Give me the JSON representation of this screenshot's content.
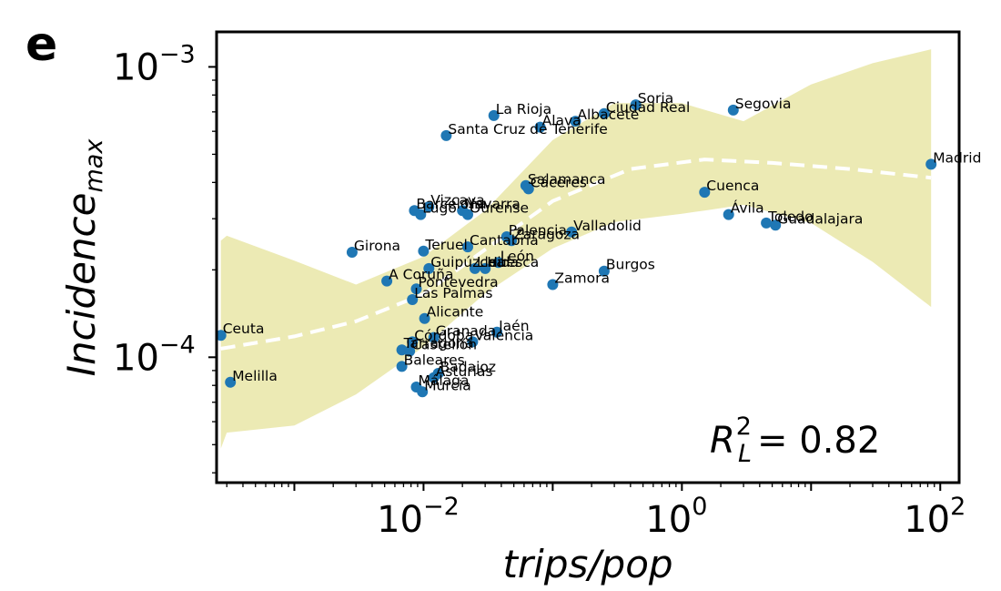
{
  "panel_label": "e",
  "annotation": {
    "text": "R",
    "superscript": "2",
    "subscript": "L",
    "value_text": "= 0.82"
  },
  "colors": {
    "points": "#1f77b4",
    "band": "#e0dc82",
    "band_alpha": 0.6,
    "fit_line": "#ffffff",
    "frame": "#000000"
  },
  "chart_data": {
    "type": "scatter",
    "xlabel": "trips/pop",
    "ylabel": {
      "main": "Incidence",
      "subscript": "max"
    },
    "xscale": "log",
    "yscale": "log",
    "xlim": [
      0.00025,
      140
    ],
    "ylim": [
      3.7e-05,
      0.00132
    ],
    "xticks": [
      {
        "value": 0.01,
        "base": "10",
        "exp": "−2"
      },
      {
        "value": 1,
        "base": "10",
        "exp": "0"
      },
      {
        "value": 100,
        "base": "10",
        "exp": "2"
      }
    ],
    "yticks": [
      {
        "value": 0.0001,
        "base": "10",
        "exp": "−4"
      },
      {
        "value": 0.001,
        "base": "10",
        "exp": "−3"
      }
    ],
    "grid": false,
    "legend": "none",
    "points": [
      {
        "name": "Madrid",
        "x": 85,
        "y": 0.000462
      },
      {
        "name": "Segovia",
        "x": 2.5,
        "y": 0.00071
      },
      {
        "name": "Soria",
        "x": 0.44,
        "y": 0.00074
      },
      {
        "name": "Ciudad Real",
        "x": 0.25,
        "y": 0.00069
      },
      {
        "name": "Albacete",
        "x": 0.15,
        "y": 0.00065
      },
      {
        "name": "Álava",
        "x": 0.08,
        "y": 0.00062
      },
      {
        "name": "La Rioja",
        "x": 0.035,
        "y": 0.00068
      },
      {
        "name": "Santa Cruz de Tenerife",
        "x": 0.015,
        "y": 0.00058
      },
      {
        "name": "Salamanca",
        "x": 0.062,
        "y": 0.00039
      },
      {
        "name": "Cáceres",
        "x": 0.065,
        "y": 0.00038
      },
      {
        "name": "Cuenca",
        "x": 1.5,
        "y": 0.00037
      },
      {
        "name": "Ávila",
        "x": 2.3,
        "y": 0.00031
      },
      {
        "name": "Toledo",
        "x": 4.5,
        "y": 0.00029
      },
      {
        "name": "Guadalajara",
        "x": 5.3,
        "y": 0.000285
      },
      {
        "name": "Valladolid",
        "x": 0.14,
        "y": 0.00027
      },
      {
        "name": "Vizcaya",
        "x": 0.011,
        "y": 0.00033
      },
      {
        "name": "Barcelona",
        "x": 0.0085,
        "y": 0.00032
      },
      {
        "name": "Lugo",
        "x": 0.0095,
        "y": 0.00031
      },
      {
        "name": "Navarra",
        "x": 0.02,
        "y": 0.00032
      },
      {
        "name": "Ourense",
        "x": 0.022,
        "y": 0.00031
      },
      {
        "name": "Girona",
        "x": 0.0028,
        "y": 0.00023
      },
      {
        "name": "Teruel",
        "x": 0.01,
        "y": 0.000232
      },
      {
        "name": "Cantabria",
        "x": 0.022,
        "y": 0.00024
      },
      {
        "name": "Palencia",
        "x": 0.044,
        "y": 0.00026
      },
      {
        "name": "Zaragoza",
        "x": 0.048,
        "y": 0.000252
      },
      {
        "name": "León",
        "x": 0.038,
        "y": 0.000212
      },
      {
        "name": "Huesca",
        "x": 0.03,
        "y": 0.000202
      },
      {
        "name": "Lleida",
        "x": 0.025,
        "y": 0.000202
      },
      {
        "name": "Guipúzcoa",
        "x": 0.011,
        "y": 0.000202
      },
      {
        "name": "Burgos",
        "x": 0.25,
        "y": 0.000198
      },
      {
        "name": "Zamora",
        "x": 0.1,
        "y": 0.000178
      },
      {
        "name": "A Coruña",
        "x": 0.0052,
        "y": 0.000183
      },
      {
        "name": "Pontevedra",
        "x": 0.0088,
        "y": 0.000172
      },
      {
        "name": "Las Palmas",
        "x": 0.0082,
        "y": 0.000158
      },
      {
        "name": "Alicante",
        "x": 0.0102,
        "y": 0.000136
      },
      {
        "name": "Ceuta",
        "x": 0.00027,
        "y": 0.000119
      },
      {
        "name": "Jaén",
        "x": 0.037,
        "y": 0.000122
      },
      {
        "name": "Granada",
        "x": 0.012,
        "y": 0.000117
      },
      {
        "name": "Córdoba",
        "x": 0.0082,
        "y": 0.000113
      },
      {
        "name": "Valencia",
        "x": 0.024,
        "y": 0.000113
      },
      {
        "name": "Tarragona",
        "x": 0.0068,
        "y": 0.000106
      },
      {
        "name": "Castellón",
        "x": 0.0078,
        "y": 0.000105
      },
      {
        "name": "Baleares",
        "x": 0.0068,
        "y": 9.3e-05
      },
      {
        "name": "Badajoz",
        "x": 0.013,
        "y": 8.8e-05
      },
      {
        "name": "Asturias",
        "x": 0.012,
        "y": 8.5e-05
      },
      {
        "name": "Málaga",
        "x": 0.0088,
        "y": 7.9e-05
      },
      {
        "name": "Murcia",
        "x": 0.0098,
        "y": 7.6e-05
      },
      {
        "name": "Melilla",
        "x": 0.00032,
        "y": 8.2e-05
      }
    ],
    "fit_line": {
      "x": [
        0.00027,
        0.001,
        0.003,
        0.01,
        0.03,
        0.1,
        0.4,
        1.5,
        5,
        20,
        85
      ],
      "y": [
        0.000107,
        0.000118,
        0.000133,
        0.000165,
        0.000235,
        0.000345,
        0.000445,
        0.00048,
        0.000467,
        0.000445,
        0.000415
      ]
    },
    "band_upper": {
      "x": [
        0.00027,
        0.0003,
        0.001,
        0.003,
        0.01,
        0.03,
        0.1,
        0.3,
        1,
        3,
        10,
        30,
        85
      ],
      "y": [
        0.000252,
        0.000262,
        0.000215,
        0.000178,
        0.000222,
        0.00032,
        0.00056,
        0.00075,
        0.00075,
        0.00065,
        0.00087,
        0.00103,
        0.00115
      ]
    },
    "band_lower": {
      "x": [
        0.00027,
        0.0003,
        0.001,
        0.003,
        0.01,
        0.03,
        0.1,
        0.3,
        1,
        1.5,
        3,
        10,
        30,
        85
      ],
      "y": [
        4.85e-05,
        5.5e-05,
        5.82e-05,
        7.45e-05,
        0.0001085,
        0.000166,
        0.000237,
        0.000292,
        0.000312,
        0.00032,
        0.000335,
        0.00029,
        0.000213,
        0.000149
      ]
    }
  }
}
